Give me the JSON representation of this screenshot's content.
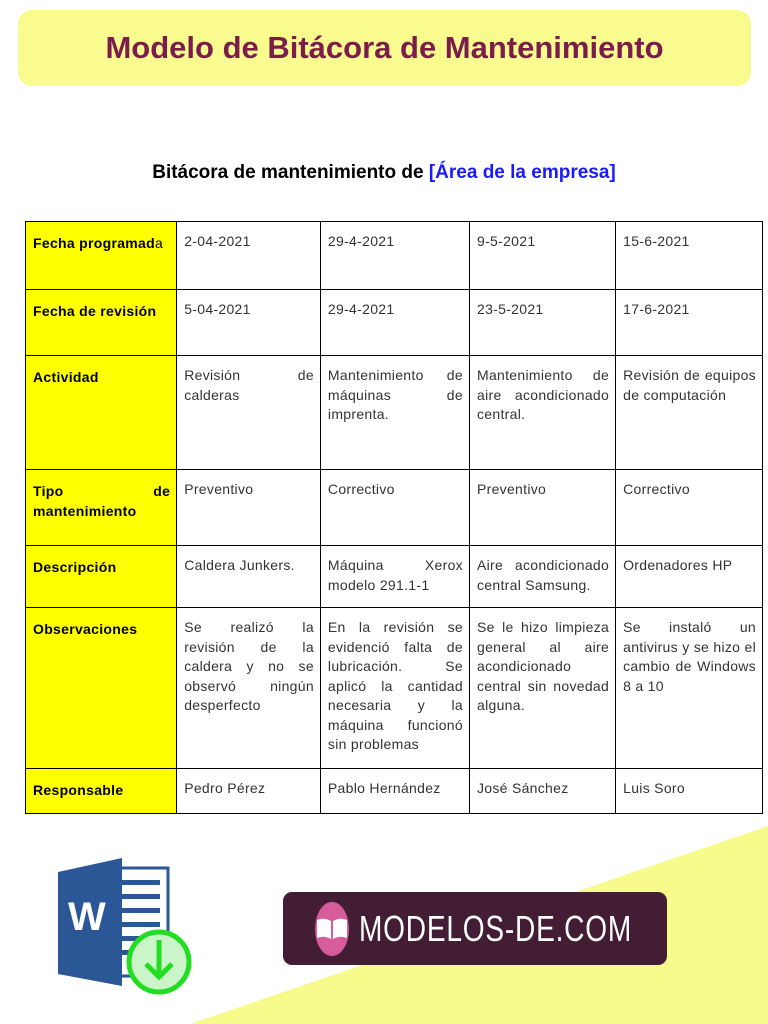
{
  "header": {
    "title": "Modelo de Bitácora de Mantenimiento"
  },
  "subtitle": {
    "prefix": "Bitácora de mantenimiento de ",
    "area": "[Área de la empresa]"
  },
  "table": {
    "rows": [
      {
        "label_bold": "Fecha programad",
        "label_light": "a",
        "cells": [
          "2-04-2021",
          "29-4-2021",
          "9-5-2021",
          "15-6-2021"
        ]
      },
      {
        "label_bold": "Fecha de revisión",
        "cells": [
          "5-04-2021",
          "29-4-2021",
          "23-5-2021",
          "17-6-2021"
        ]
      },
      {
        "label_bold": "Actividad",
        "cells": [
          "Revisión de calderas",
          "Mantenimiento de máquinas de imprenta.",
          "Mantenimiento de aire acondicionado central.",
          "Revisión de equipos de computación"
        ]
      },
      {
        "label_bold": "Tipo de mantenimiento",
        "cells": [
          "Preventivo",
          "Correctivo",
          "Preventivo",
          "Correctivo"
        ]
      },
      {
        "label_bold": "Descripción",
        "cells": [
          "Caldera Junkers.",
          "Máquina Xerox modelo 291.1-1",
          "Aire acondicionado central Samsung.",
          "Ordenadores HP"
        ]
      },
      {
        "label_bold": "Observaciones",
        "cells": [
          "Se realizó la revisión de la caldera y no se observó ningún desperfecto",
          "En la revisión se evidenció falta de lubricación. Se aplicó la cantidad necesaria y la máquina funcionó sin problemas",
          "Se le hizo limpieza general al aire acondicionado central sin novedad alguna.",
          "Se instaló un antivirus y se hizo el cambio de Windows 8 a 10"
        ]
      },
      {
        "label_bold": "Responsable",
        "cells": [
          "Pedro Pérez",
          "Pablo Hernández",
          "José Sánchez",
          "Luis Soro"
        ]
      }
    ]
  },
  "footer": {
    "logo_text": "MODELOS-DE.COM",
    "word_icon": "word-download-icon",
    "book_icon": "open-book-icon"
  },
  "colors": {
    "title": "#7a1d4b",
    "banner": "#f9fb8f",
    "label_bg": "#ffff00",
    "area": "#1a1aff",
    "logo_bg": "#431d33",
    "logo_circle": "#d65c9b"
  }
}
